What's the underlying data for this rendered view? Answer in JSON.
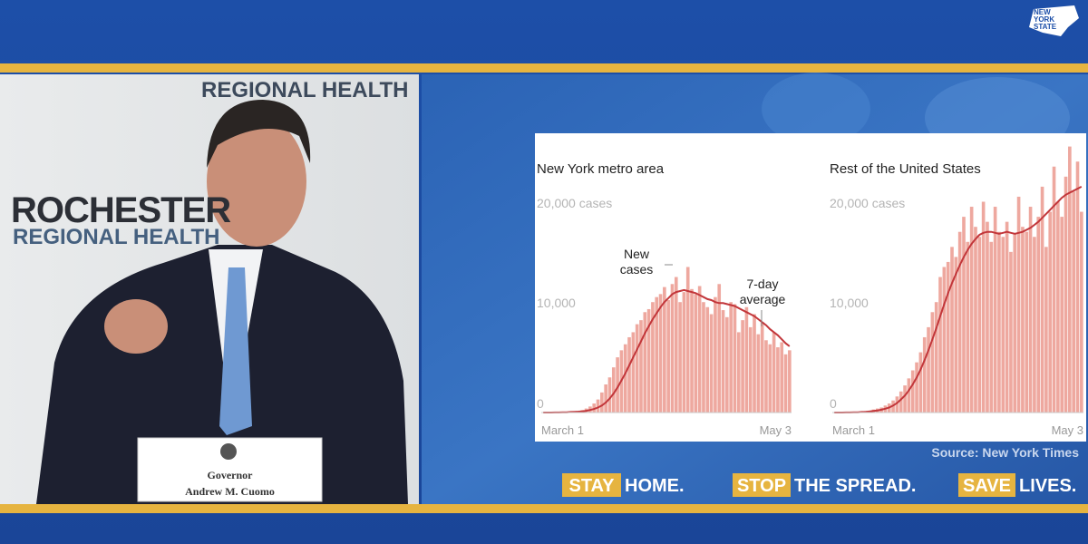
{
  "logo": {
    "text": "NEW YORK STATE"
  },
  "video": {
    "backdrop": [
      "REGIONAL HEALTH",
      "ROCHESTER",
      "REGIONAL HEALTH"
    ],
    "nameplate": {
      "title": "Governor",
      "name": "Andrew M. Cuomo"
    }
  },
  "chart_data": [
    {
      "type": "bar",
      "title": "New York metro area",
      "categories": [
        "March 1",
        null,
        null,
        null,
        null,
        null,
        null,
        null,
        null,
        null,
        null,
        null,
        null,
        null,
        null,
        null,
        null,
        null,
        null,
        null,
        null,
        null,
        null,
        null,
        null,
        null,
        null,
        null,
        null,
        null,
        null,
        null,
        null,
        null,
        null,
        null,
        null,
        null,
        null,
        null,
        null,
        null,
        null,
        null,
        null,
        null,
        null,
        null,
        null,
        null,
        null,
        null,
        null,
        null,
        null,
        null,
        null,
        null,
        null,
        null,
        null,
        null,
        null,
        "May 3"
      ],
      "ylim": [
        0,
        28000
      ],
      "yticks": [
        0,
        {
          "value": 10000,
          "label": "10,000"
        },
        {
          "value": 20000,
          "label": "20,000 cases"
        }
      ],
      "grid": false,
      "series": [
        {
          "name": "New cases",
          "type": "bar",
          "color": "#eea89f",
          "values": [
            0,
            0,
            5,
            10,
            30,
            60,
            80,
            100,
            120,
            150,
            250,
            400,
            600,
            900,
            1300,
            2000,
            2800,
            3500,
            4500,
            5500,
            6200,
            6800,
            7500,
            8000,
            8800,
            9200,
            10000,
            10300,
            11000,
            11500,
            11800,
            12500,
            11200,
            12800,
            13500,
            11000,
            12000,
            14500,
            12300,
            11800,
            12600,
            11000,
            10500,
            9800,
            11500,
            12800,
            10200,
            9500,
            11000,
            10800,
            8000,
            9200,
            10500,
            8500,
            9800,
            7800,
            9000,
            7200,
            6800,
            8000,
            6500,
            7000,
            5800,
            6200
          ]
        },
        {
          "name": "7-day average",
          "type": "line",
          "color": "#c2363a",
          "values": [
            0,
            0,
            0,
            5,
            10,
            20,
            30,
            50,
            70,
            90,
            120,
            170,
            250,
            350,
            500,
            700,
            1000,
            1400,
            1900,
            2500,
            3200,
            3900,
            4700,
            5500,
            6300,
            7100,
            7900,
            8600,
            9300,
            9900,
            10500,
            11000,
            11400,
            11800,
            12000,
            12100,
            12200,
            12100,
            12000,
            11900,
            11700,
            11500,
            11300,
            11200,
            11000,
            10900,
            10900,
            10800,
            10700,
            10600,
            10400,
            10200,
            10000,
            9800,
            9600,
            9300,
            9000,
            8700,
            8300,
            8000,
            7700,
            7300,
            6900,
            6600
          ]
        }
      ]
    },
    {
      "type": "bar",
      "title": "Rest of the United States",
      "categories": [
        "March 1",
        null,
        null,
        null,
        null,
        null,
        null,
        null,
        null,
        null,
        null,
        null,
        null,
        null,
        null,
        null,
        null,
        null,
        null,
        null,
        null,
        null,
        null,
        null,
        null,
        null,
        null,
        null,
        null,
        null,
        null,
        null,
        null,
        null,
        null,
        null,
        null,
        null,
        null,
        null,
        null,
        null,
        null,
        null,
        null,
        null,
        null,
        null,
        null,
        null,
        null,
        null,
        null,
        null,
        null,
        null,
        null,
        null,
        null,
        null,
        null,
        null,
        null,
        "May 3"
      ],
      "ylim": [
        0,
        28000
      ],
      "yticks": [
        0,
        {
          "value": 10000,
          "label": "10,000"
        },
        {
          "value": 20000,
          "label": "20,000 cases"
        }
      ],
      "grid": false,
      "series": [
        {
          "type": "bar",
          "color": "#eea89f",
          "values": [
            0,
            5,
            10,
            20,
            40,
            60,
            80,
            100,
            150,
            200,
            300,
            400,
            500,
            700,
            900,
            1200,
            1600,
            2100,
            2700,
            3400,
            4200,
            5000,
            6000,
            7500,
            8500,
            10000,
            11000,
            13500,
            14500,
            15000,
            16500,
            15500,
            18000,
            19500,
            17000,
            20500,
            18500,
            17500,
            21000,
            19000,
            17000,
            20500,
            18000,
            17500,
            19000,
            16000,
            17800,
            21500,
            18500,
            18000,
            20500,
            17500,
            19500,
            22500,
            16500,
            20000,
            24500,
            21000,
            19500,
            23500,
            26500,
            22000,
            25000,
            20000
          ]
        },
        {
          "type": "line",
          "color": "#c2363a",
          "values": [
            0,
            0,
            0,
            5,
            10,
            20,
            30,
            50,
            70,
            100,
            150,
            200,
            280,
            380,
            500,
            700,
            950,
            1300,
            1700,
            2200,
            2800,
            3500,
            4300,
            5200,
            6200,
            7300,
            8400,
            9600,
            10800,
            11900,
            12900,
            13800,
            14700,
            15500,
            16200,
            16800,
            17300,
            17700,
            17900,
            18000,
            18000,
            17900,
            17800,
            17900,
            18000,
            17900,
            17800,
            17900,
            18000,
            18200,
            18400,
            18700,
            19000,
            19400,
            19800,
            20200,
            20600,
            21000,
            21400,
            21700,
            21900,
            22100,
            22300,
            22500
          ]
        }
      ]
    }
  ],
  "source": "Source: New York Times",
  "banner": [
    {
      "highlight": "STAY",
      "text": "HOME."
    },
    {
      "highlight": "STOP",
      "text": "THE SPREAD."
    },
    {
      "highlight": "SAVE",
      "text": "LIVES."
    }
  ]
}
